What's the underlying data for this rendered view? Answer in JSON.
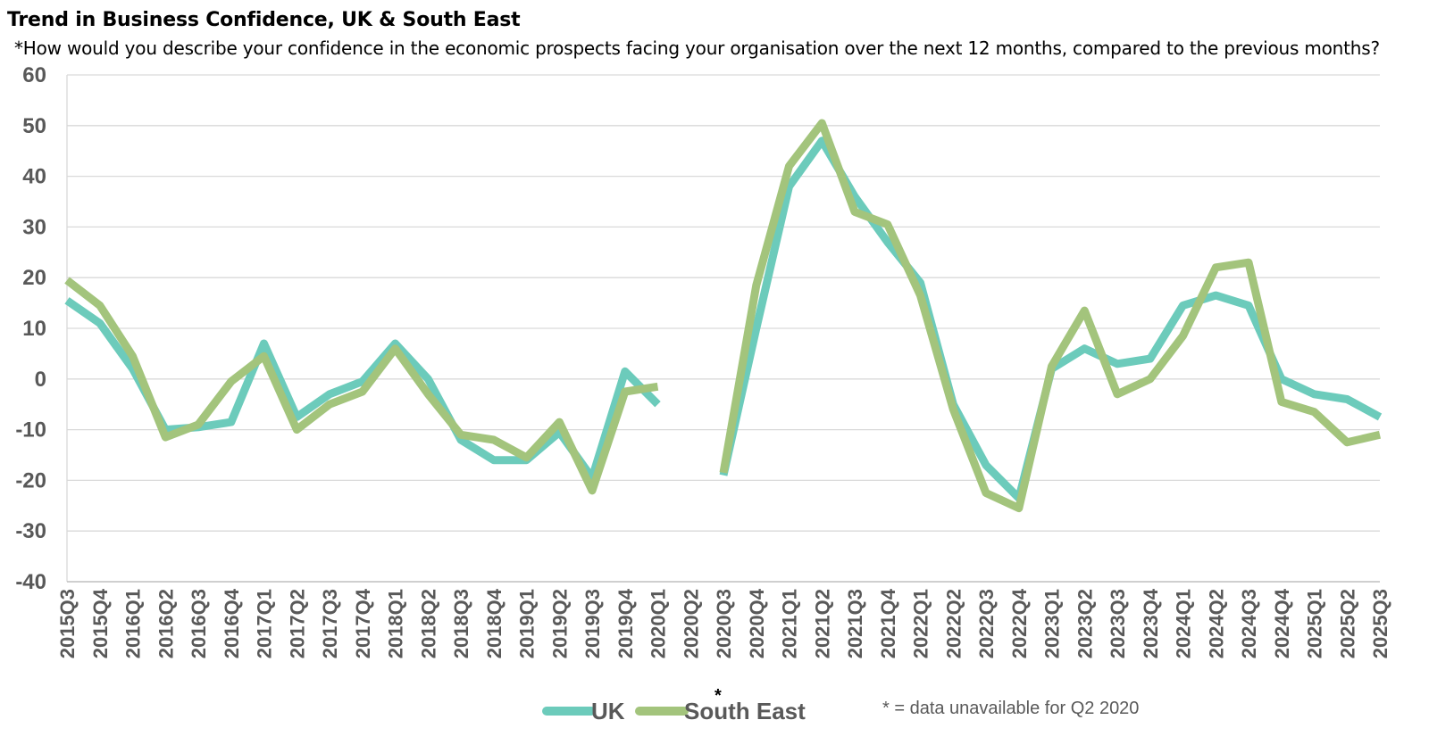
{
  "chart_data": {
    "type": "line",
    "title": "Trend in Business Confidence, UK & South East",
    "subtitle": "*How would you describe your confidence in the economic prospects facing your organisation over the next 12 months, compared to the previous months?",
    "ylim": [
      -40,
      60
    ],
    "yticks": [
      "60",
      "50",
      "40",
      "30",
      "20",
      "10",
      "0",
      "-10",
      "-20",
      "-30",
      "-40"
    ],
    "grid": true,
    "legend_position": "bottom",
    "categories": [
      "2015Q3",
      "2015Q4",
      "2016Q1",
      "2016Q2",
      "2016Q3",
      "2016Q4",
      "2017Q1",
      "2017Q2",
      "2017Q3",
      "2017Q4",
      "2018Q1",
      "2018Q2",
      "2018Q3",
      "2018Q4",
      "2019Q1",
      "2019Q2",
      "2019Q3",
      "2019Q4",
      "2020Q1",
      "2020Q2",
      "2020Q3",
      "2020Q4",
      "2021Q1",
      "2021Q2",
      "2021Q3",
      "2021Q4",
      "2022Q1",
      "2022Q2",
      "2022Q3",
      "2022Q4",
      "2023Q1",
      "2023Q2",
      "2023Q3",
      "2023Q4",
      "2024Q1",
      "2024Q2",
      "2024Q3",
      "2024Q4",
      "2025Q1",
      "2025Q2",
      "2025Q3"
    ],
    "series": [
      {
        "name": "UK",
        "color": "#6ccbbb",
        "values": [
          15.5,
          11,
          2,
          -10,
          -9.5,
          -8.5,
          7,
          -7.5,
          -3,
          -0.5,
          7,
          0,
          -12,
          -16,
          -16,
          -10.5,
          -19.5,
          1.5,
          -5,
          null,
          -19,
          10,
          38,
          47,
          36,
          27,
          19,
          -5,
          -17,
          -23.5,
          2,
          6,
          3,
          4,
          14.5,
          16.5,
          14.5,
          0,
          -3,
          -4,
          -7.5
        ]
      },
      {
        "name": "South East",
        "color": "#a3c47c",
        "values": [
          19.5,
          14.5,
          4.5,
          -11.5,
          -9,
          -0.5,
          4.5,
          -10,
          -5,
          -2.5,
          6,
          -3,
          -11,
          -12,
          -15.5,
          -8.5,
          -22,
          -2.5,
          -1.5,
          null,
          -18.5,
          18.5,
          42,
          50.5,
          33,
          30.5,
          16.5,
          -6,
          -22.5,
          -25.5,
          2.5,
          13.5,
          -3,
          0,
          8.5,
          22,
          23,
          -4.5,
          -6.5,
          -12.5,
          -11
        ]
      }
    ],
    "gap_marker": "*",
    "note": "* = data unavailable for Q2 2020"
  }
}
